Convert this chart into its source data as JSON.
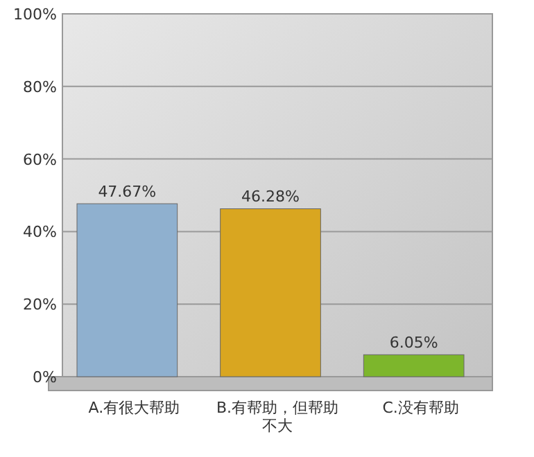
{
  "chart_data": {
    "type": "bar",
    "categories": [
      "A.有很大帮助",
      "B.有帮助，但帮助不大",
      "C.没有帮助"
    ],
    "values": [
      47.67,
      46.28,
      6.05
    ],
    "colors": [
      "#8fb0cf",
      "#d9a620",
      "#7db62c"
    ],
    "value_labels": [
      "47.67%",
      "46.28%",
      "6.05%"
    ],
    "ylim": [
      0,
      100
    ],
    "yticks": [
      {
        "value": 0,
        "label": "0%"
      },
      {
        "value": 20,
        "label": "20%"
      },
      {
        "value": 40,
        "label": "40%"
      },
      {
        "value": 60,
        "label": "60%"
      },
      {
        "value": 80,
        "label": "80%"
      },
      {
        "value": 100,
        "label": "100%"
      }
    ],
    "grid": "y"
  }
}
